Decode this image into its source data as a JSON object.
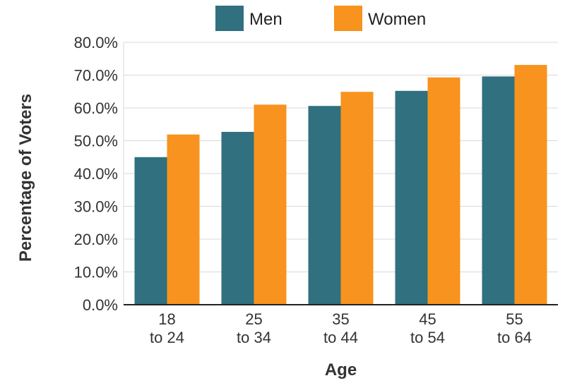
{
  "chart_data": {
    "type": "bar",
    "title": "",
    "xlabel": "Age",
    "ylabel": "Percentage of Voters",
    "categories": [
      [
        "18",
        "to 24"
      ],
      [
        "25",
        "to 34"
      ],
      [
        "35",
        "to 44"
      ],
      [
        "45",
        "to 54"
      ],
      [
        "55",
        "to 64"
      ]
    ],
    "series": [
      {
        "name": "Men",
        "color": "#31707f",
        "values": [
          45.0,
          52.7,
          60.6,
          65.2,
          69.6
        ]
      },
      {
        "name": "Women",
        "color": "#f7931e",
        "values": [
          51.9,
          61.0,
          64.9,
          69.3,
          73.1
        ]
      }
    ],
    "ylim": [
      0,
      80
    ],
    "yticks": [
      "0.0%",
      "10.0%",
      "20.0%",
      "30.0%",
      "40.0%",
      "50.0%",
      "60.0%",
      "70.0%",
      "80.0%"
    ],
    "grid": true,
    "legend_position": "top-center"
  }
}
